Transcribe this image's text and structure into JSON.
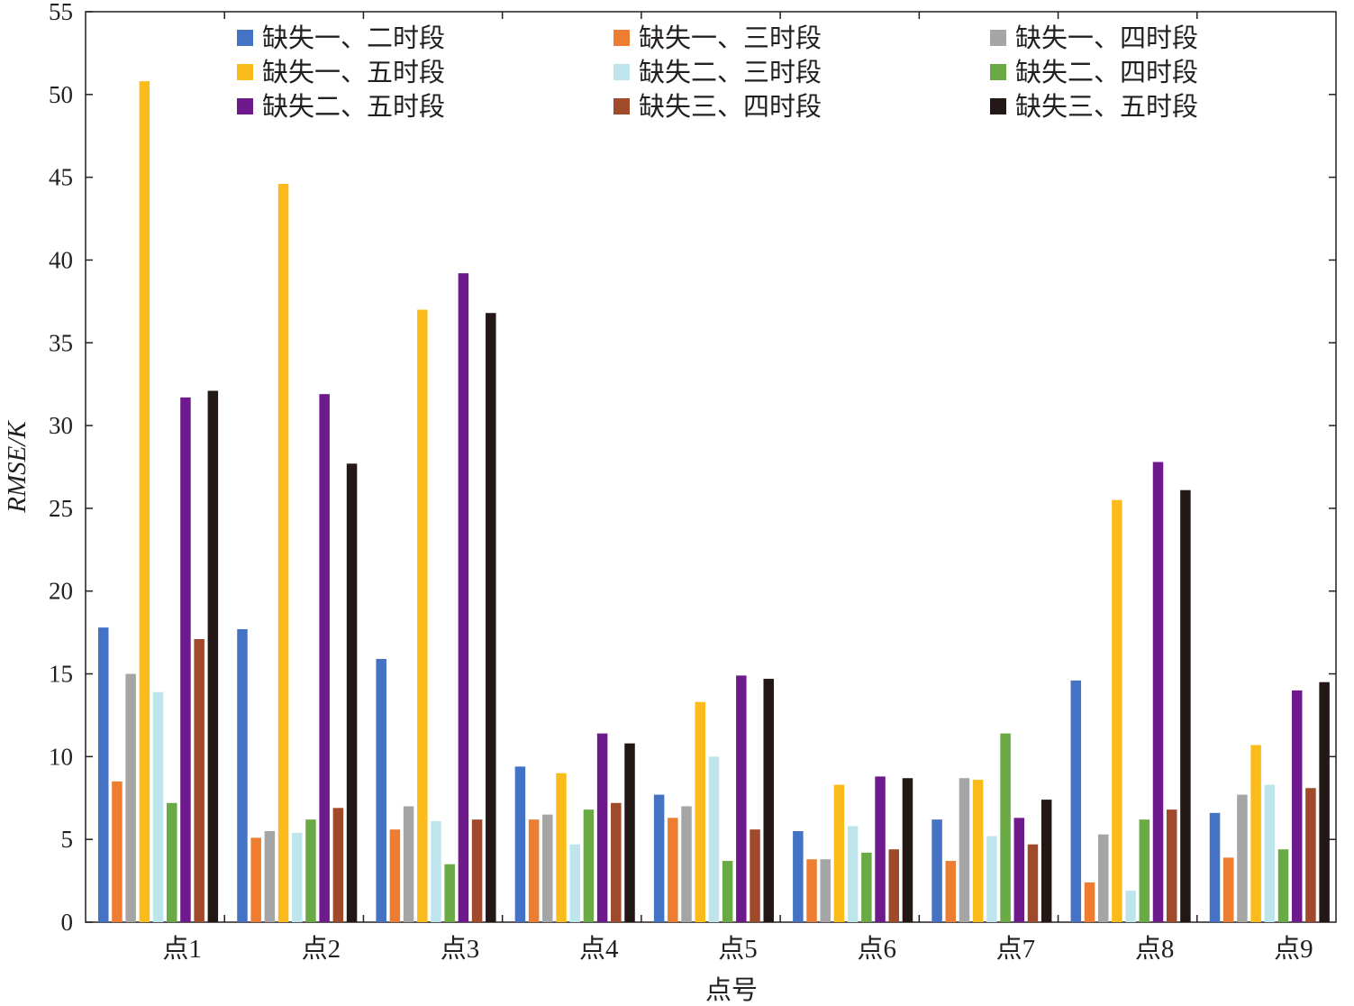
{
  "chart_data": {
    "type": "bar",
    "title": "",
    "xlabel": "点号",
    "ylabel": "RMSE/K",
    "ylim": [
      0,
      55
    ],
    "yticks": [
      0,
      5,
      10,
      15,
      20,
      25,
      30,
      35,
      40,
      45,
      50,
      55
    ],
    "grid": false,
    "legend_position": "top",
    "categories": [
      "点1",
      "点2",
      "点3",
      "点4",
      "点5",
      "点6",
      "点7",
      "点8",
      "点9"
    ],
    "series": [
      {
        "name": "缺失一、二时段",
        "color": "#4472c4",
        "values": [
          17.8,
          17.7,
          15.9,
          9.4,
          7.7,
          5.5,
          6.2,
          14.6,
          6.6
        ]
      },
      {
        "name": "缺失一、三时段",
        "color": "#ed7d31",
        "values": [
          8.5,
          5.1,
          5.6,
          6.2,
          6.3,
          3.8,
          3.7,
          2.4,
          3.9
        ]
      },
      {
        "name": "缺失一、四时段",
        "color": "#a5a5a5",
        "values": [
          15.0,
          5.5,
          7.0,
          6.5,
          7.0,
          3.8,
          8.7,
          5.3,
          7.7
        ]
      },
      {
        "name": "缺失一、五时段",
        "color": "#fbbc1b",
        "values": [
          50.8,
          44.6,
          37.0,
          9.0,
          13.3,
          8.3,
          8.6,
          25.5,
          10.7
        ]
      },
      {
        "name": "缺失二、三时段",
        "color": "#bfe5ec",
        "values": [
          13.9,
          5.4,
          6.1,
          4.7,
          10.0,
          5.8,
          5.2,
          1.9,
          8.3
        ]
      },
      {
        "name": "缺失二、四时段",
        "color": "#6aaa44",
        "values": [
          7.2,
          6.2,
          3.5,
          6.8,
          3.7,
          4.2,
          11.4,
          6.2,
          4.4
        ]
      },
      {
        "name": "缺失二、五时段",
        "color": "#6e1a8c",
        "values": [
          31.7,
          31.9,
          39.2,
          11.4,
          14.9,
          8.8,
          6.3,
          27.8,
          14.0
        ]
      },
      {
        "name": "缺失三、四时段",
        "color": "#a0492b",
        "values": [
          17.1,
          6.9,
          6.2,
          7.2,
          5.6,
          4.4,
          4.7,
          6.8,
          8.1
        ]
      },
      {
        "name": "缺失三、五时段",
        "color": "#231815",
        "values": [
          32.1,
          27.7,
          36.8,
          10.8,
          14.7,
          8.7,
          7.4,
          26.1,
          14.5
        ]
      }
    ]
  }
}
